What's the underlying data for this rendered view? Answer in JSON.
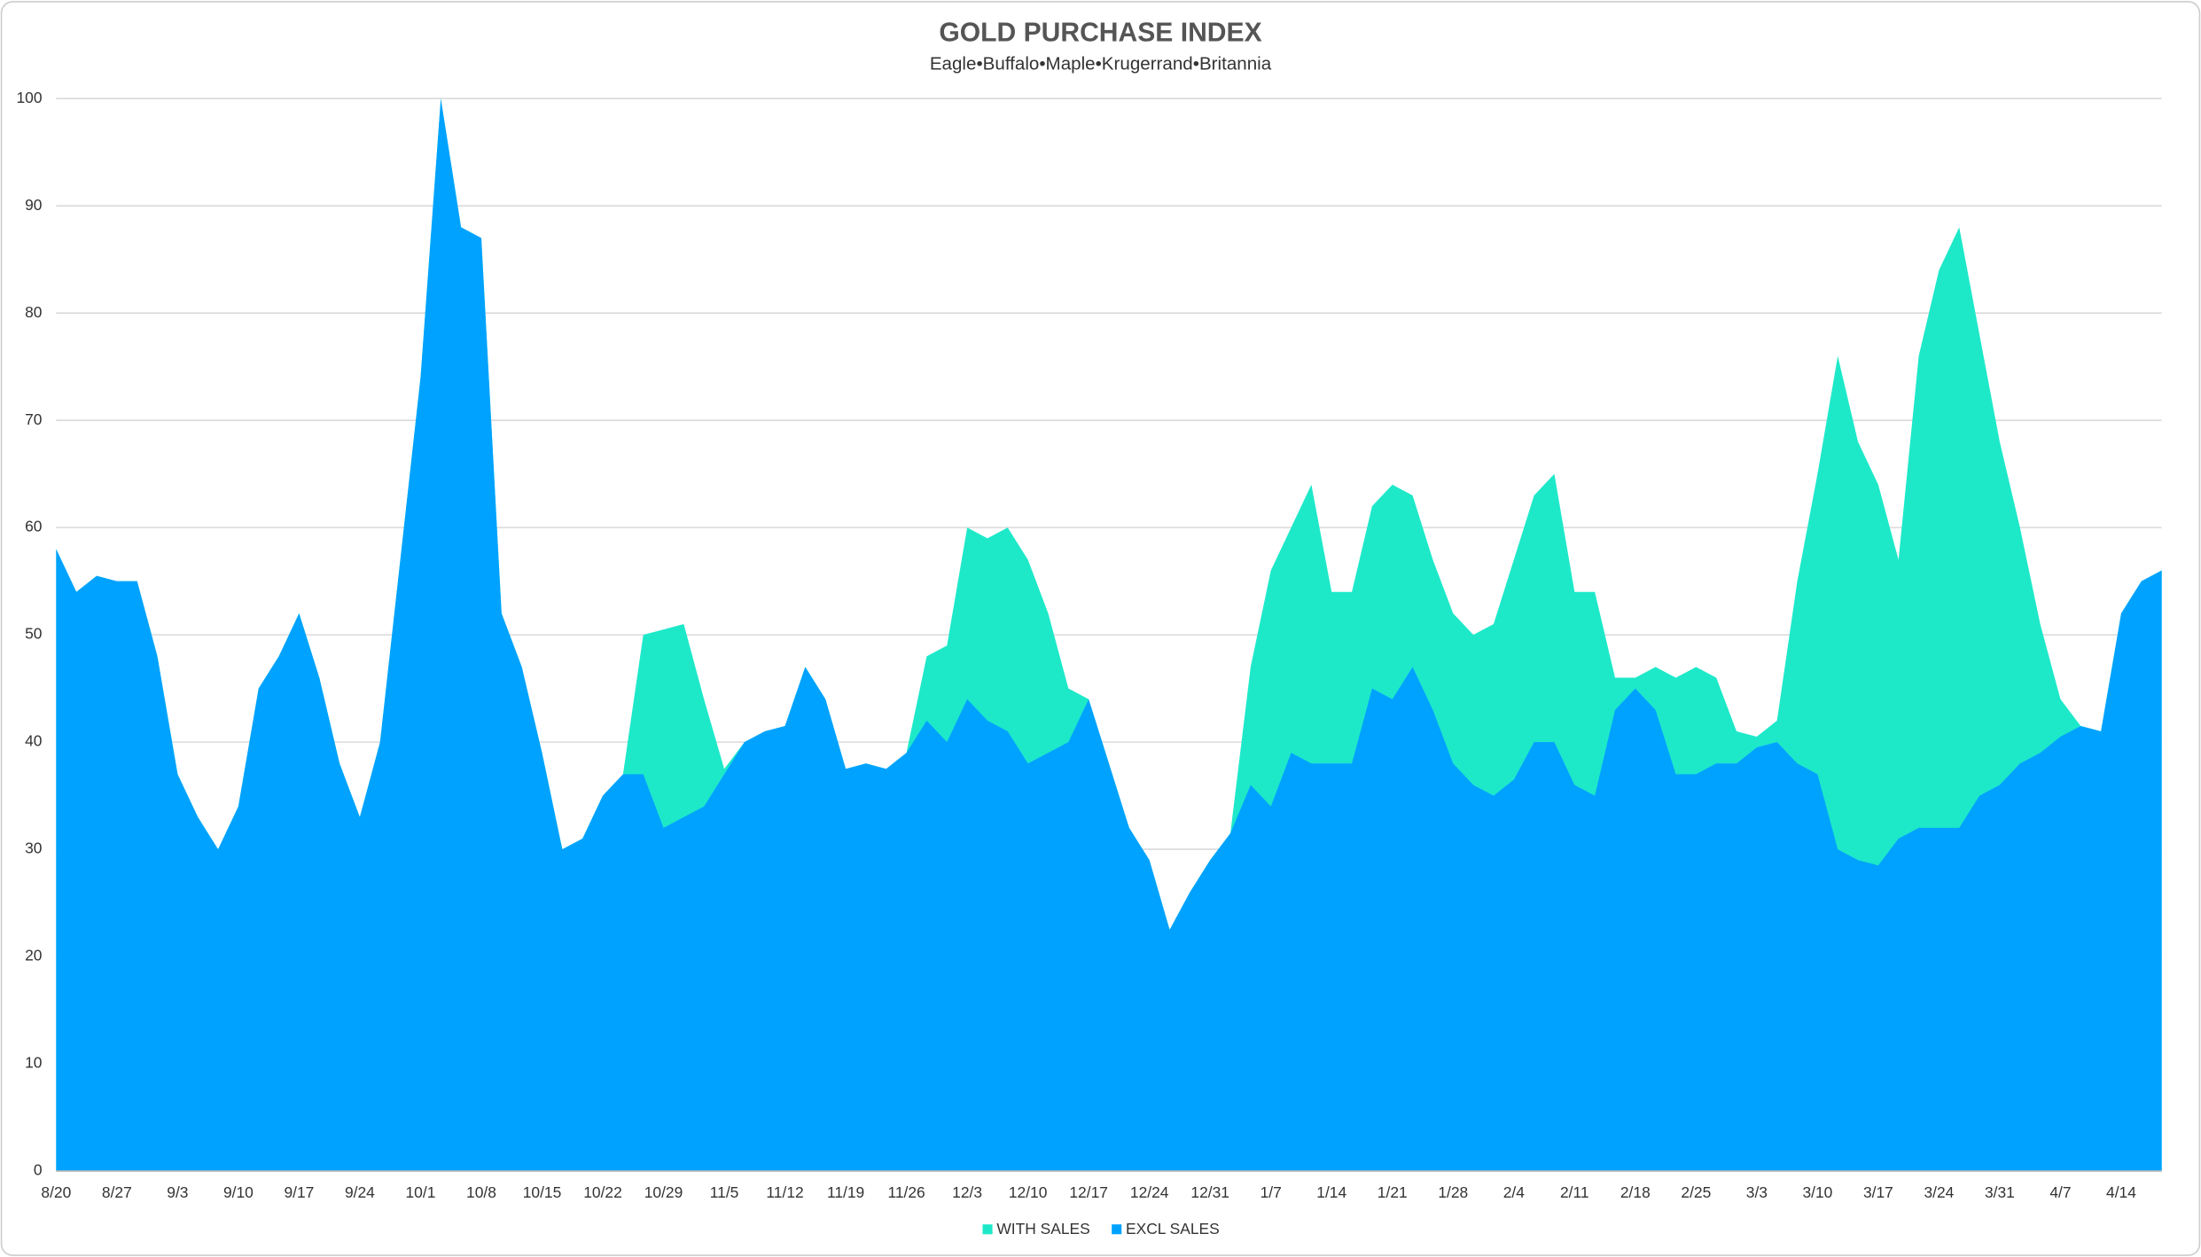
{
  "chart_data": {
    "type": "area",
    "title": "GOLD PURCHASE INDEX",
    "subtitle": "Eagle•Buffalo•Maple•Krugerrand•Britannia",
    "categories": [
      "8/20",
      null,
      null,
      "8/27",
      null,
      null,
      "9/3",
      null,
      null,
      "9/10",
      null,
      null,
      "9/17",
      null,
      null,
      "9/24",
      null,
      null,
      "10/1",
      null,
      null,
      "10/8",
      null,
      null,
      "10/15",
      null,
      null,
      "10/22",
      null,
      null,
      "10/29",
      null,
      null,
      "11/5",
      null,
      null,
      "11/12",
      null,
      null,
      "11/19",
      null,
      null,
      "11/26",
      null,
      null,
      "12/3",
      null,
      null,
      "12/10",
      null,
      null,
      "12/17",
      null,
      null,
      "12/24",
      null,
      null,
      "12/31",
      null,
      null,
      "1/7",
      null,
      null,
      "1/14",
      null,
      null,
      "1/21",
      null,
      null,
      "1/28",
      null,
      null,
      "2/4",
      null,
      null,
      "2/11",
      null,
      null,
      "2/18",
      null,
      null,
      "2/25",
      null,
      null,
      "3/3",
      null,
      null,
      "3/10",
      null,
      null,
      "3/17",
      null,
      null,
      "3/24",
      null,
      null,
      "3/31",
      null,
      null,
      "4/7",
      null,
      null,
      "4/14",
      null,
      null
    ],
    "series": [
      {
        "name": "WITH SALES",
        "color": "#1de9c9",
        "values": [
          58,
          54,
          55.5,
          55,
          55,
          48,
          37,
          33,
          30,
          34,
          45,
          48,
          52,
          46,
          38,
          33,
          40,
          57,
          74,
          100,
          88,
          87,
          52,
          47,
          39,
          30,
          31,
          35,
          37,
          50,
          50.5,
          51,
          44,
          37.5,
          40,
          41,
          41.5,
          47,
          44,
          37.5,
          38,
          37.5,
          39,
          48,
          49,
          60,
          59,
          60,
          57,
          52,
          45,
          44,
          38,
          32,
          29,
          22.5,
          26,
          29,
          31.5,
          47,
          56,
          60,
          64,
          54,
          54,
          62,
          64,
          63,
          57,
          52,
          50,
          51,
          57,
          63,
          65,
          54,
          54,
          46,
          46,
          47,
          46,
          47,
          46,
          41,
          40.5,
          42,
          55,
          65,
          76,
          68,
          64,
          57,
          76,
          84,
          88,
          78,
          68,
          60,
          51,
          44,
          41.5,
          41,
          52,
          55,
          56
        ]
      },
      {
        "name": "EXCL SALES",
        "color": "#00a2ff",
        "values": [
          58,
          54,
          55.5,
          55,
          55,
          48,
          37,
          33,
          30,
          34,
          45,
          48,
          52,
          46,
          38,
          33,
          40,
          57,
          74,
          100,
          88,
          87,
          52,
          47,
          39,
          30,
          31,
          35,
          37,
          37,
          32,
          33,
          34,
          37,
          40,
          41,
          41.5,
          47,
          44,
          37.5,
          38,
          37.5,
          39,
          42,
          40,
          44,
          42,
          41,
          38,
          39,
          40,
          44,
          38,
          32,
          29,
          22.5,
          26,
          29,
          31.5,
          36,
          34,
          39,
          38,
          38,
          38,
          45,
          44,
          47,
          43,
          38,
          36,
          35,
          36.5,
          40,
          40,
          36,
          35,
          43,
          45,
          43,
          37,
          37,
          38,
          38,
          39.5,
          40,
          38,
          37,
          30,
          29,
          28.5,
          31,
          32,
          32,
          32,
          35,
          36,
          38,
          39,
          40.5,
          41.5,
          41,
          52,
          55,
          56
        ]
      }
    ],
    "ylim": [
      0,
      100
    ],
    "yticks": [
      0,
      10,
      20,
      30,
      40,
      50,
      60,
      70,
      80,
      90,
      100
    ],
    "grid": true,
    "legend": "bottom"
  }
}
